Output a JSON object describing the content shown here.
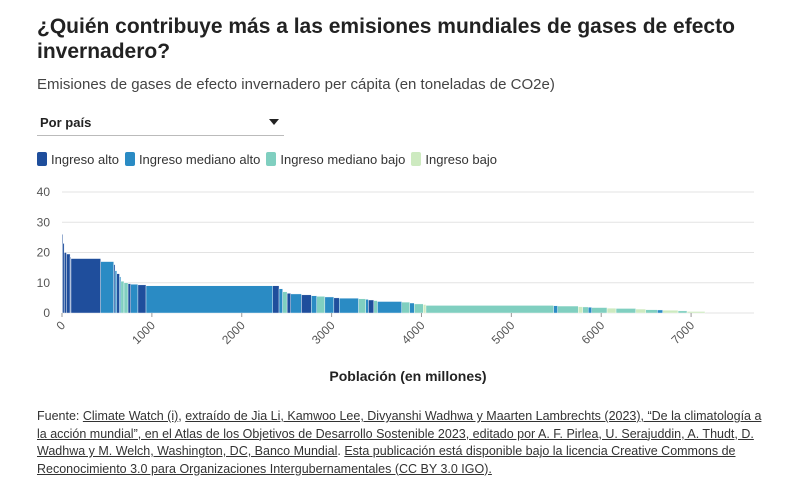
{
  "title": "¿Quién contribuye más a las emisiones mundiales de gases de efecto invernadero?",
  "subtitle": "Emisiones de gases de efecto invernadero per cápita (en toneladas de CO2e)",
  "dropdown": {
    "selected": "Por país"
  },
  "legend": [
    {
      "label": "Ingreso alto",
      "color": "#1f4e9c"
    },
    {
      "label": "Ingreso mediano alto",
      "color": "#2a8bc4"
    },
    {
      "label": "Ingreso mediano bajo",
      "color": "#80cfc0"
    },
    {
      "label": "Ingreso bajo",
      "color": "#cdeac0"
    }
  ],
  "source": {
    "prefix": "Fuente: ",
    "link1": "Climate Watch (i)",
    "sep1": ", ",
    "link2": "extraído de Jia Li, Kamwoo Lee, Divyanshi Wadhwa y Maarten Lambrechts (2023), “De la climatología a la acción mundial”, en el Atlas de los Objetivos de Desarrollo Sostenible 2023, editado por A. F. Pirlea, U. Serajuddin, A. Thudt, D. Wadhwa y M. Welch, Washington, DC, Banco Mundial",
    "sep2": ". ",
    "link3": "Esta publicación está disponible bajo la licencia Creative Commons de Reconocimiento 3.0 para Organizaciones Intergubernamentales (CC BY 3.0 IGO)."
  },
  "chart_data": {
    "type": "bar",
    "xlabel": "Población (en millones)",
    "ylabel": "",
    "xlim": [
      0,
      7700
    ],
    "ylim": [
      0,
      40
    ],
    "xticks": [
      "0",
      "1000",
      "2000",
      "3000",
      "4000",
      "5000",
      "6000",
      "7000"
    ],
    "xtick_values": [
      0,
      1000,
      2000,
      3000,
      4000,
      5000,
      6000,
      7000
    ],
    "yticks": [
      "0",
      "10",
      "20",
      "30",
      "40"
    ],
    "ytick_values": [
      0,
      10,
      20,
      30,
      40
    ],
    "grid": true,
    "note": "variable-width bars: width = population (millions), height = emissions per capita",
    "segments": [
      {
        "pop": 10,
        "value": 26,
        "group": "Ingreso alto"
      },
      {
        "pop": 15,
        "value": 23,
        "group": "Ingreso alto"
      },
      {
        "pop": 25,
        "value": 20,
        "group": "Ingreso alto"
      },
      {
        "pop": 40,
        "value": 19.5,
        "group": "Ingreso alto"
      },
      {
        "pop": 10,
        "value": 18.5,
        "group": "Ingreso alto"
      },
      {
        "pop": 330,
        "value": 18,
        "group": "Ingreso alto"
      },
      {
        "pop": 145,
        "value": 17,
        "group": "Ingreso mediano alto"
      },
      {
        "pop": 15,
        "value": 16,
        "group": "Ingreso alto"
      },
      {
        "pop": 20,
        "value": 14,
        "group": "Ingreso mediano alto"
      },
      {
        "pop": 30,
        "value": 13,
        "group": "Ingreso alto"
      },
      {
        "pop": 15,
        "value": 12,
        "group": "Ingreso mediano alto"
      },
      {
        "pop": 35,
        "value": 10.5,
        "group": "Ingreso mediano bajo"
      },
      {
        "pop": 45,
        "value": 10,
        "group": "Ingreso mediano bajo"
      },
      {
        "pop": 30,
        "value": 9.7,
        "group": "Ingreso alto"
      },
      {
        "pop": 80,
        "value": 9.5,
        "group": "Ingreso mediano alto"
      },
      {
        "pop": 90,
        "value": 9.3,
        "group": "Ingreso alto"
      },
      {
        "pop": 1410,
        "value": 9,
        "group": "Ingreso mediano alto"
      },
      {
        "pop": 70,
        "value": 9,
        "group": "Ingreso alto"
      },
      {
        "pop": 40,
        "value": 8,
        "group": "Ingreso mediano alto"
      },
      {
        "pop": 50,
        "value": 7,
        "group": "Ingreso mediano bajo"
      },
      {
        "pop": 40,
        "value": 6.5,
        "group": "Ingreso alto"
      },
      {
        "pop": 120,
        "value": 6.3,
        "group": "Ingreso mediano alto"
      },
      {
        "pop": 110,
        "value": 6,
        "group": "Ingreso alto"
      },
      {
        "pop": 60,
        "value": 5.7,
        "group": "Ingreso mediano alto"
      },
      {
        "pop": 90,
        "value": 5.5,
        "group": "Ingreso mediano bajo"
      },
      {
        "pop": 100,
        "value": 5.3,
        "group": "Ingreso mediano alto"
      },
      {
        "pop": 60,
        "value": 5,
        "group": "Ingreso alto"
      },
      {
        "pop": 215,
        "value": 4.9,
        "group": "Ingreso mediano alto"
      },
      {
        "pop": 80,
        "value": 4.7,
        "group": "Ingreso mediano bajo"
      },
      {
        "pop": 30,
        "value": 4.5,
        "group": "Ingreso mediano alto"
      },
      {
        "pop": 60,
        "value": 4.3,
        "group": "Ingreso alto"
      },
      {
        "pop": 40,
        "value": 4.1,
        "group": "Ingreso mediano bajo"
      },
      {
        "pop": 270,
        "value": 3.8,
        "group": "Ingreso mediano alto"
      },
      {
        "pop": 90,
        "value": 3.6,
        "group": "Ingreso mediano bajo"
      },
      {
        "pop": 50,
        "value": 3.3,
        "group": "Ingreso mediano alto"
      },
      {
        "pop": 100,
        "value": 3,
        "group": "Ingreso mediano bajo"
      },
      {
        "pop": 30,
        "value": 2.8,
        "group": "Ingreso bajo"
      },
      {
        "pop": 1420,
        "value": 2.5,
        "group": "Ingreso mediano bajo"
      },
      {
        "pop": 45,
        "value": 2.4,
        "group": "Ingreso mediano alto"
      },
      {
        "pop": 230,
        "value": 2.3,
        "group": "Ingreso mediano bajo"
      },
      {
        "pop": 50,
        "value": 2.1,
        "group": "Ingreso bajo"
      },
      {
        "pop": 60,
        "value": 2,
        "group": "Ingreso mediano bajo"
      },
      {
        "pop": 40,
        "value": 1.9,
        "group": "Ingreso mediano alto"
      },
      {
        "pop": 170,
        "value": 1.8,
        "group": "Ingreso mediano bajo"
      },
      {
        "pop": 100,
        "value": 1.6,
        "group": "Ingreso bajo"
      },
      {
        "pop": 220,
        "value": 1.5,
        "group": "Ingreso mediano bajo"
      },
      {
        "pop": 110,
        "value": 1.3,
        "group": "Ingreso bajo"
      },
      {
        "pop": 130,
        "value": 1.1,
        "group": "Ingreso mediano bajo"
      },
      {
        "pop": 60,
        "value": 1,
        "group": "Ingreso mediano alto"
      },
      {
        "pop": 170,
        "value": 0.9,
        "group": "Ingreso bajo"
      },
      {
        "pop": 100,
        "value": 0.7,
        "group": "Ingreso mediano bajo"
      },
      {
        "pop": 200,
        "value": 0.5,
        "group": "Ingreso bajo"
      }
    ]
  }
}
